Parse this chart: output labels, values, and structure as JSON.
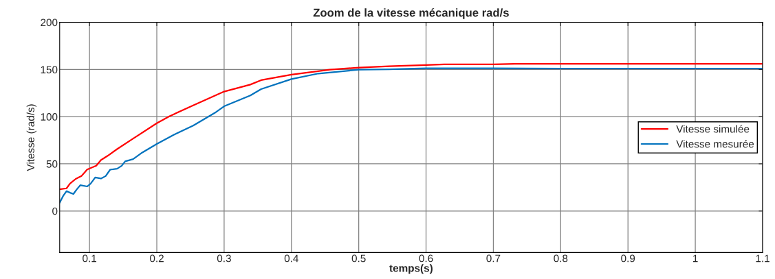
{
  "chart_data": {
    "type": "line",
    "title": "Zoom de la vitesse mécanique rad/s",
    "xlabel": "temps(s)",
    "ylabel": "Vitesse (rad/s)",
    "xlim": [
      0.0557,
      1.1
    ],
    "ylim": [
      -44,
      200
    ],
    "xticks": [
      0.1,
      0.2,
      0.3,
      0.4,
      0.5,
      0.6,
      0.7,
      0.8,
      0.9,
      1,
      1.1
    ],
    "yticks": [
      0,
      50,
      100,
      150,
      200
    ],
    "grid": true,
    "legend": "right",
    "line_style": "solid",
    "marker": "none",
    "series": [
      {
        "name": "Vitesse simulée",
        "color": "#ff0000",
        "x": [
          0.0557,
          0.0659,
          0.071,
          0.0795,
          0.088,
          0.0966,
          0.11,
          0.117,
          0.127,
          0.141,
          0.161,
          0.2,
          0.219,
          0.254,
          0.3,
          0.339,
          0.355,
          0.4,
          0.457,
          0.5,
          0.545,
          0.6,
          0.627,
          0.7,
          0.732,
          0.8,
          0.9,
          1.0,
          1.1
        ],
        "values": [
          23,
          24,
          29,
          34,
          37,
          44,
          48,
          54,
          58.5,
          65.6,
          75,
          93,
          100.5,
          112,
          126.6,
          134,
          138.7,
          144.6,
          149.8,
          152,
          153.5,
          154.7,
          155.4,
          155.4,
          156,
          156,
          156,
          156,
          156
        ]
      },
      {
        "name": "Vitesse mesurée",
        "color": "#0072bd",
        "x": [
          0.0557,
          0.0608,
          0.0659,
          0.071,
          0.0761,
          0.0812,
          0.0863,
          0.0966,
          0.1017,
          0.1085,
          0.117,
          0.124,
          0.1307,
          0.141,
          0.1478,
          0.153,
          0.1648,
          0.1785,
          0.2,
          0.226,
          0.254,
          0.2877,
          0.3,
          0.339,
          0.355,
          0.4,
          0.44,
          0.5,
          0.545,
          0.6,
          0.7,
          0.8,
          0.9,
          1.0,
          1.1
        ],
        "values": [
          8.8,
          15.9,
          21,
          19.4,
          18,
          23,
          27.3,
          26,
          29,
          35.5,
          34.4,
          37,
          43.8,
          44.8,
          47.9,
          52.6,
          55,
          62,
          71,
          81,
          90.5,
          104.7,
          111,
          122.5,
          129.2,
          139.8,
          145.7,
          149.8,
          150.2,
          151.2,
          151.2,
          151,
          151,
          151,
          151
        ]
      }
    ]
  }
}
